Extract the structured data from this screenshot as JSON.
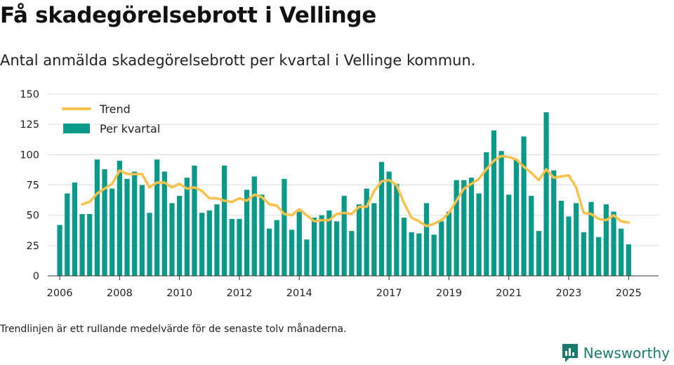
{
  "page": {
    "title": "Få skadegörelsebrott i Vellinge",
    "subtitle": "Antal anmälda skadegörelsebrott per kvartal i Vellinge kommun.",
    "note": "Trendlinjen är ett rullande medelvärde för de senaste tolv månaderna.",
    "brand": "Newsworthy",
    "brand_icon": "newsworthy-logo-icon"
  },
  "colors": {
    "bar": "#0a9a8a",
    "trend": "#f7c14b",
    "grid": "#dddddd",
    "axis": "#333333",
    "brand": "#1a7a6b"
  },
  "chart_data": {
    "type": "bar",
    "ylim": [
      0,
      150
    ],
    "yticks": [
      0,
      25,
      50,
      75,
      100,
      125,
      150
    ],
    "xlim": [
      2005.6,
      2026.0
    ],
    "xticks": [
      2006,
      2008,
      2010,
      2012,
      2014,
      2017,
      2019,
      2021,
      2023,
      2025
    ],
    "grid": true,
    "legend_position": "top-left",
    "series": [
      {
        "name": "Per kvartal",
        "type": "bar",
        "x": [
          2006.0,
          2006.25,
          2006.5,
          2006.75,
          2007.0,
          2007.25,
          2007.5,
          2007.75,
          2008.0,
          2008.25,
          2008.5,
          2008.75,
          2009.0,
          2009.25,
          2009.5,
          2009.75,
          2010.0,
          2010.25,
          2010.5,
          2010.75,
          2011.0,
          2011.25,
          2011.5,
          2011.75,
          2012.0,
          2012.25,
          2012.5,
          2012.75,
          2013.0,
          2013.25,
          2013.5,
          2013.75,
          2014.0,
          2014.25,
          2014.5,
          2014.75,
          2015.0,
          2015.25,
          2015.5,
          2015.75,
          2016.0,
          2016.25,
          2016.5,
          2016.75,
          2017.0,
          2017.25,
          2017.5,
          2017.75,
          2018.0,
          2018.25,
          2018.5,
          2018.75,
          2019.0,
          2019.25,
          2019.5,
          2019.75,
          2020.0,
          2020.25,
          2020.5,
          2020.75,
          2021.0,
          2021.25,
          2021.5,
          2021.75,
          2022.0,
          2022.25,
          2022.5,
          2022.75,
          2023.0,
          2023.25,
          2023.5,
          2023.75,
          2024.0,
          2024.25,
          2024.5,
          2024.75,
          2025.0
        ],
        "values": [
          42,
          68,
          77,
          51,
          51,
          96,
          88,
          72,
          95,
          80,
          86,
          75,
          52,
          96,
          86,
          60,
          66,
          81,
          91,
          52,
          54,
          59,
          91,
          47,
          47,
          71,
          82,
          67,
          39,
          46,
          80,
          38,
          53,
          30,
          48,
          50,
          54,
          45,
          66,
          37,
          59,
          72,
          60,
          94,
          86,
          76,
          48,
          36,
          35,
          60,
          34,
          45,
          53,
          79,
          79,
          81,
          68,
          102,
          120,
          103,
          67,
          96,
          115,
          66,
          37,
          135,
          87,
          62,
          49,
          60,
          36,
          61,
          32,
          59,
          53,
          39,
          26
        ]
      },
      {
        "name": "Trend",
        "type": "line",
        "x": [
          2006.75,
          2007.0,
          2007.25,
          2007.5,
          2007.75,
          2008.0,
          2008.25,
          2008.5,
          2008.75,
          2009.0,
          2009.25,
          2009.5,
          2009.75,
          2010.0,
          2010.25,
          2010.5,
          2010.75,
          2011.0,
          2011.25,
          2011.5,
          2011.75,
          2012.0,
          2012.25,
          2012.5,
          2012.75,
          2013.0,
          2013.25,
          2013.5,
          2013.75,
          2014.0,
          2014.25,
          2014.5,
          2014.75,
          2015.0,
          2015.25,
          2015.5,
          2015.75,
          2016.0,
          2016.25,
          2016.5,
          2016.75,
          2017.0,
          2017.25,
          2017.5,
          2017.75,
          2018.0,
          2018.25,
          2018.5,
          2018.75,
          2019.0,
          2019.25,
          2019.5,
          2019.75,
          2020.0,
          2020.25,
          2020.5,
          2020.75,
          2021.0,
          2021.25,
          2021.5,
          2021.75,
          2022.0,
          2022.25,
          2022.5,
          2022.75,
          2023.0,
          2023.25,
          2023.5,
          2023.75,
          2024.0,
          2024.25,
          2024.5,
          2024.75,
          2025.0
        ],
        "values": [
          59,
          61,
          68,
          72,
          76,
          87,
          84,
          84,
          84,
          73,
          77,
          77,
          73,
          76,
          72,
          73,
          70,
          64,
          64,
          62,
          61,
          64,
          62,
          67,
          65,
          59,
          58,
          51,
          50,
          55,
          50,
          45,
          46,
          46,
          51,
          52,
          51,
          57,
          57,
          70,
          78,
          79,
          75,
          60,
          48,
          45,
          41,
          43,
          46,
          52,
          62,
          72,
          76,
          80,
          88,
          95,
          99,
          98,
          96,
          90,
          85,
          79,
          88,
          81,
          82,
          83,
          73,
          52,
          51,
          47,
          46,
          50,
          45,
          44
        ]
      }
    ]
  }
}
